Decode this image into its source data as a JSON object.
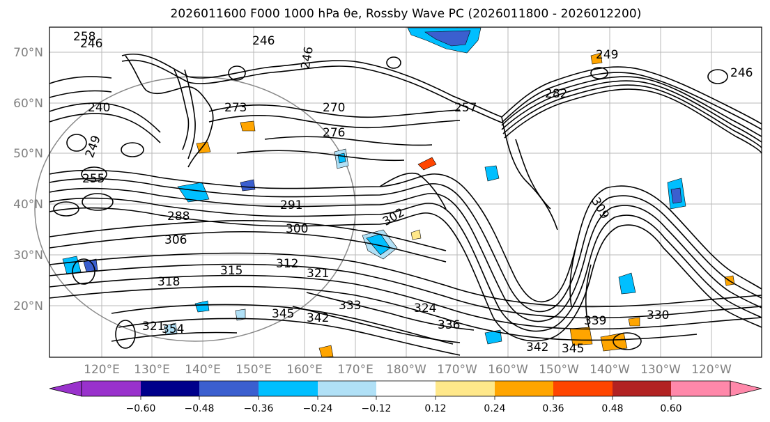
{
  "title": "2026011600 F000 1000 hPa θe, Rossby Wave PC (2026011800 - 2026012200)",
  "map": {
    "lat_labels": [
      "70°N",
      "60°N",
      "50°N",
      "40°N",
      "30°N",
      "20°N"
    ],
    "lon_labels": [
      "120°E",
      "130°E",
      "140°E",
      "150°E",
      "160°E",
      "170°E",
      "180°W",
      "170°W",
      "160°W",
      "150°W",
      "140°W",
      "130°W",
      "120°W"
    ],
    "contour_labels": [
      {
        "text": "258"
      },
      {
        "text": "246"
      },
      {
        "text": "246"
      },
      {
        "text": "246"
      },
      {
        "text": "249"
      },
      {
        "text": "246"
      },
      {
        "text": "240"
      },
      {
        "text": "249"
      },
      {
        "text": "255"
      },
      {
        "text": "273"
      },
      {
        "text": "270"
      },
      {
        "text": "276"
      },
      {
        "text": "291"
      },
      {
        "text": "288"
      },
      {
        "text": "300"
      },
      {
        "text": "306"
      },
      {
        "text": "312"
      },
      {
        "text": "315"
      },
      {
        "text": "318"
      },
      {
        "text": "321"
      },
      {
        "text": "321"
      },
      {
        "text": "354"
      },
      {
        "text": "345"
      },
      {
        "text": "342"
      },
      {
        "text": "333"
      },
      {
        "text": "324"
      },
      {
        "text": "336"
      },
      {
        "text": "339"
      },
      {
        "text": "330"
      },
      {
        "text": "342"
      },
      {
        "text": "345"
      },
      {
        "text": "309"
      },
      {
        "text": "282"
      },
      {
        "text": "302"
      },
      {
        "text": "257"
      }
    ],
    "colors": {
      "line": "#000000",
      "grid": "#b0b0b0",
      "tick_label": "#808080"
    }
  },
  "colorbar": {
    "ticks": [
      "−0.60",
      "−0.48",
      "−0.36",
      "−0.24",
      "−0.12",
      "0.12",
      "0.24",
      "0.36",
      "0.48",
      "0.60"
    ],
    "colors": [
      "#9932cc",
      "#00008b",
      "#3b5fcf",
      "#00bfff",
      "#b0e0f6",
      "#ffffff",
      "#ffe88a",
      "#ffa500",
      "#ff4500",
      "#b22222",
      "#ff88aa"
    ]
  }
}
